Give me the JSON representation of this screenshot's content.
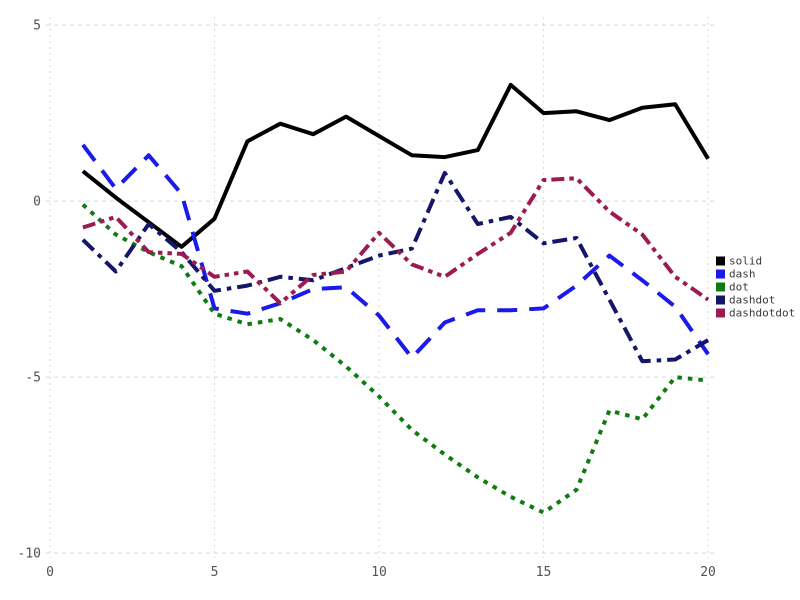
{
  "figure": {
    "background": "#ffffff",
    "grid_color": "#d9d9d9",
    "tick_label_color": "#55505a",
    "legend_text_color": "#3a3a3a"
  },
  "chart_data": {
    "type": "line",
    "title": "",
    "xlabel": "",
    "ylabel": "",
    "grid": true,
    "legend_position": "right",
    "x_ticks": [
      "0",
      "5",
      "10",
      "15",
      "20"
    ],
    "x_tick_values": [
      0,
      5,
      10,
      15,
      20
    ],
    "y_ticks": [
      "5",
      "0",
      "-5",
      "-10"
    ],
    "y_tick_values": [
      5,
      0,
      -5,
      -10
    ],
    "xlim": [
      0,
      20.18
    ],
    "ylim": [
      -10.14,
      5.23
    ],
    "x": [
      1,
      2,
      3,
      4,
      5,
      6,
      7,
      8,
      9,
      10,
      11,
      12,
      13,
      14,
      15,
      16,
      17,
      18,
      19,
      20
    ],
    "series": [
      {
        "name": "solid",
        "color": "#000000",
        "linestyle": "solid",
        "values": [
          0.85,
          0.1,
          -0.6,
          -1.3,
          -0.5,
          1.7,
          2.2,
          1.9,
          2.4,
          1.85,
          1.3,
          1.25,
          1.45,
          3.3,
          2.5,
          2.55,
          2.3,
          2.65,
          2.75,
          1.2
        ]
      },
      {
        "name": "dash",
        "color": "#1a1aeb",
        "linestyle": "dash",
        "values": [
          1.6,
          0.35,
          1.3,
          0.2,
          -3.05,
          -3.2,
          -2.9,
          -2.5,
          -2.45,
          -3.25,
          -4.45,
          -3.45,
          -3.1,
          -3.1,
          -3.05,
          -2.4,
          -1.55,
          -2.25,
          -3.0,
          -4.35
        ]
      },
      {
        "name": "dot",
        "color": "#0e7c10",
        "linestyle": "dot",
        "values": [
          -0.1,
          -0.95,
          -1.45,
          -1.85,
          -3.2,
          -3.5,
          -3.35,
          -3.95,
          -4.7,
          -5.55,
          -6.5,
          -7.2,
          -7.85,
          -8.4,
          -8.85,
          -8.2,
          -5.95,
          -6.2,
          -5.0,
          -5.1
        ]
      },
      {
        "name": "dashdot",
        "color": "#15156b",
        "linestyle": "dashdot",
        "values": [
          -1.1,
          -2.0,
          -0.65,
          -1.45,
          -2.55,
          -2.4,
          -2.15,
          -2.25,
          -1.9,
          -1.55,
          -1.35,
          0.8,
          -0.65,
          -0.45,
          -1.2,
          -1.05,
          -2.8,
          -4.55,
          -4.5,
          -3.95
        ]
      },
      {
        "name": "dashdotdot",
        "color": "#9c1c52",
        "linestyle": "dashdotdot",
        "values": [
          -0.75,
          -0.45,
          -1.45,
          -1.5,
          -2.15,
          -2.0,
          -2.9,
          -2.1,
          -2.0,
          -0.9,
          -1.8,
          -2.15,
          -1.5,
          -0.9,
          0.6,
          0.65,
          -0.3,
          -0.95,
          -2.15,
          -2.8
        ]
      }
    ]
  }
}
